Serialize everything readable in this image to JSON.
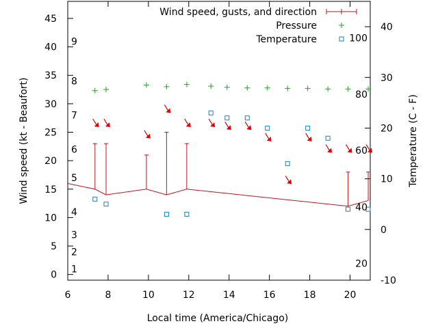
{
  "chart_data": {
    "type": "line",
    "xlabel": "Local time (America/Chicago)",
    "ylabel_left": "Wind speed (kt - Beaufort)",
    "ylabel_right": "Temperature (C - F)",
    "xlim": [
      6,
      21
    ],
    "ylim_left": [
      -1,
      48
    ],
    "ylim_right": [
      -10,
      45
    ],
    "x_ticks": [
      6,
      8,
      10,
      12,
      14,
      16,
      18,
      20
    ],
    "y_ticks_left": [
      0,
      5,
      10,
      15,
      20,
      25,
      30,
      35,
      40,
      45
    ],
    "y_ticks_right": [
      -10,
      0,
      10,
      20,
      30,
      40
    ],
    "beaufort_labels": [
      {
        "label": "1",
        "y": 1
      },
      {
        "label": "2",
        "y": 4
      },
      {
        "label": "3",
        "y": 7
      },
      {
        "label": "4",
        "y": 11
      },
      {
        "label": "5",
        "y": 17
      },
      {
        "label": "6",
        "y": 22
      },
      {
        "label": "7",
        "y": 28
      },
      {
        "label": "8",
        "y": 34
      },
      {
        "label": "9",
        "y": 41
      }
    ],
    "fahrenheit_labels": [
      {
        "label": "20",
        "c": -6.7
      },
      {
        "label": "40",
        "c": 4.4
      },
      {
        "label": "60",
        "c": 15.6
      },
      {
        "label": "80",
        "c": 26.7
      },
      {
        "label": "100",
        "c": 37.8
      }
    ],
    "legend": [
      {
        "label": "Wind speed, gusts, and direction",
        "color": "#c0101a",
        "marker": "errorbar"
      },
      {
        "label": "Pressure",
        "color": "#20a020",
        "marker": "plus"
      },
      {
        "label": "Temperature",
        "color": "#1a7fc0",
        "marker": "square"
      }
    ],
    "series": [
      {
        "name": "Wind speed, gusts, and direction",
        "color": "#c0101a",
        "x": [
          6,
          7.35,
          7.9,
          9.9,
          10.9,
          11.9,
          19.9,
          20.9
        ],
        "speed": [
          16,
          15,
          14,
          15,
          14,
          15,
          12,
          13
        ],
        "gust": [
          null,
          23,
          23,
          21,
          25,
          23,
          18,
          18
        ]
      },
      {
        "name": "Wind direction arrows",
        "color": "#e00000",
        "x": [
          7.35,
          7.9,
          9.9,
          10.9,
          11.9,
          13.1,
          13.9,
          14.9,
          15.9,
          16.9,
          17.9,
          18.9,
          19.9,
          20.9
        ],
        "y": [
          26.5,
          26.5,
          24.5,
          29,
          26.5,
          26.5,
          26,
          26,
          24,
          16.5,
          24,
          22,
          22,
          22
        ]
      },
      {
        "name": "Pressure",
        "color": "#20a020",
        "x": [
          7.35,
          7.9,
          9.9,
          10.9,
          11.9,
          13.1,
          13.9,
          14.9,
          15.9,
          16.9,
          17.9,
          18.9,
          19.9,
          20.9
        ],
        "y": [
          32.3,
          32.5,
          33.3,
          33,
          33.4,
          33.1,
          32.9,
          32.8,
          32.8,
          32.7,
          32.7,
          32.6,
          32.6,
          32.6
        ]
      },
      {
        "name": "Temperature",
        "color": "#1a7fc0",
        "x": [
          7.35,
          7.9,
          10.9,
          11.9,
          13.1,
          13.9,
          14.9,
          15.9,
          16.9,
          17.9,
          18.9,
          19.9,
          20.9
        ],
        "y": [
          6,
          5,
          3,
          3,
          23,
          22,
          22,
          20,
          13,
          20,
          18,
          4,
          4
        ]
      }
    ]
  }
}
